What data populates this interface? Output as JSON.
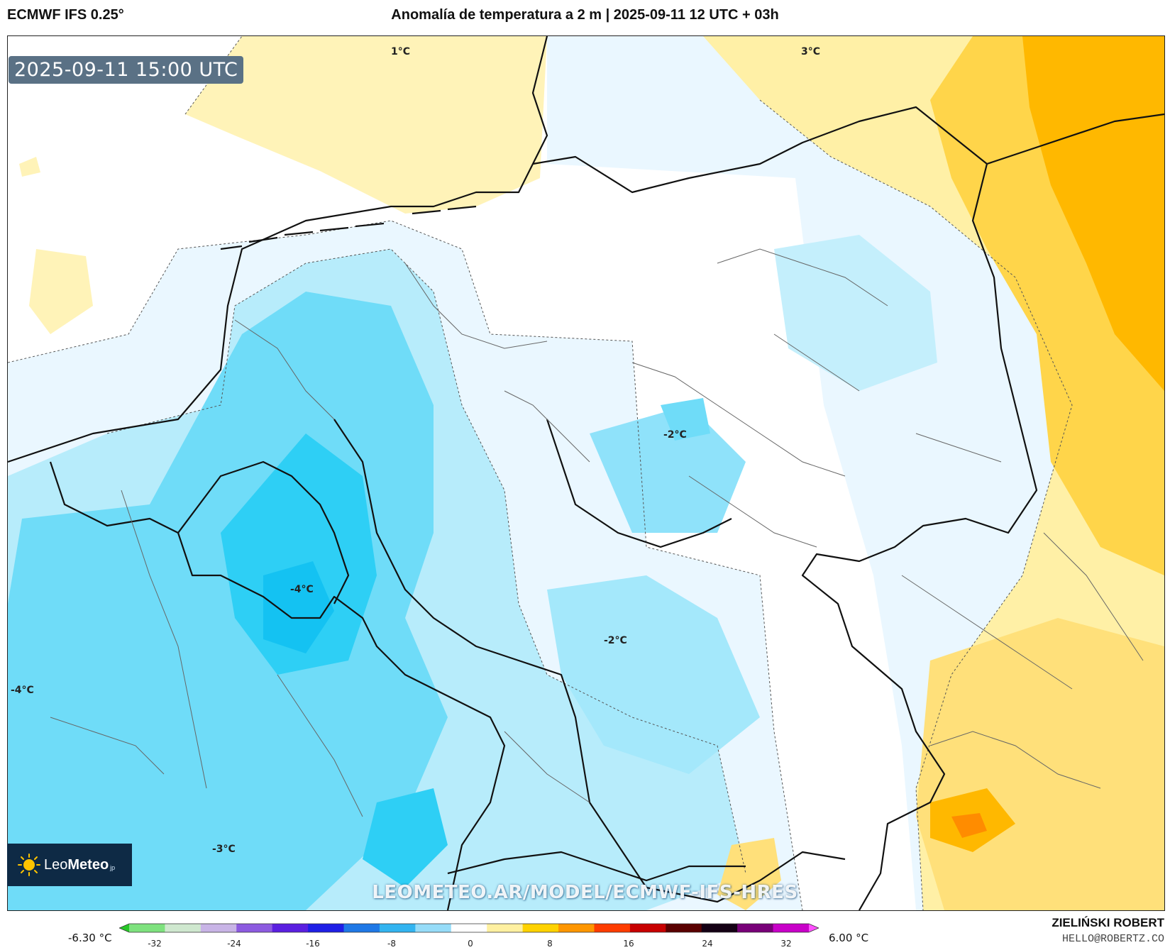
{
  "header": {
    "model": "ECMWF IFS 0.25°",
    "title": "Anomalía de temperatura a 2 m | 2025-09-11 12 UTC + 03h"
  },
  "valid_time": "2025-09-11 15:00 UTC",
  "logo": {
    "name_light": "Leo",
    "name_bold": "Meteo",
    "suffix": "jp"
  },
  "watermark": "LEOMETEO.AR/MODEL/ECMWF-IFS-HRES",
  "map": {
    "labels": [
      "1°C",
      "3°C",
      "-2°C",
      "-4°C",
      "-2°C",
      "-4°C",
      "-3°C"
    ]
  },
  "legend": {
    "min": "-6.30 °C",
    "max": "6.00 °C",
    "ticks": [
      "-32",
      "-24",
      "-16",
      "-8",
      "0",
      "8",
      "16",
      "24",
      "32"
    ],
    "colors": [
      "#27c627",
      "#7ee27e",
      "#cfe8cf",
      "#c8b4e6",
      "#8c5ae0",
      "#5a1ee0",
      "#1e1ee6",
      "#1e78e6",
      "#32b4f0",
      "#96dcf8",
      "#ffffff",
      "#fff0a0",
      "#ffd200",
      "#ff9600",
      "#ff3c00",
      "#c80000",
      "#5a0000",
      "#140014",
      "#780078",
      "#c800c8",
      "#ff50ff"
    ]
  },
  "author": "ZIELIŃSKI ROBERT",
  "email": "HELLO@ROBERTZ.CO"
}
